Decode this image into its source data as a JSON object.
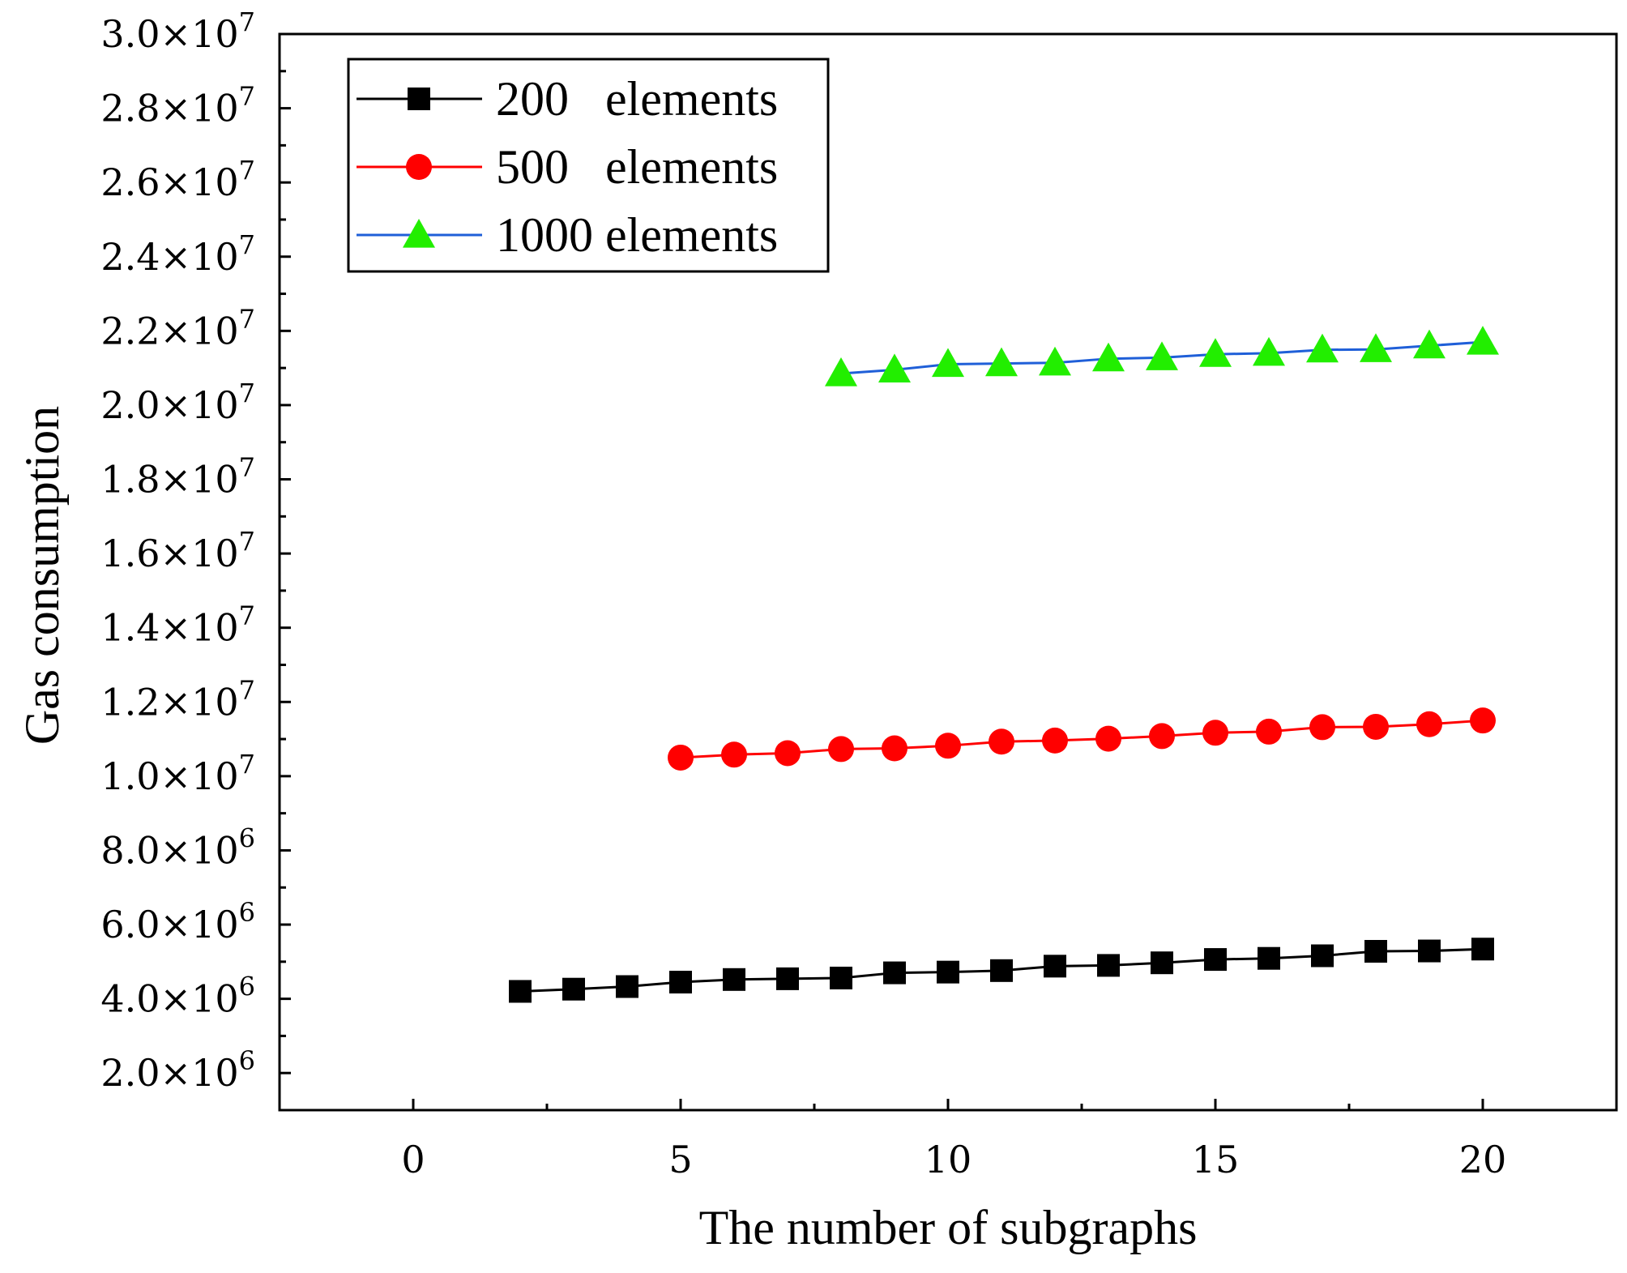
{
  "chart_data": {
    "type": "line",
    "title": "",
    "xlabel": "The number of subgraphs",
    "ylabel": "Gas consumption",
    "xlim": [
      -2.5,
      22.5
    ],
    "ylim": [
      1000000,
      30000000
    ],
    "x_ticks": [
      0,
      5,
      10,
      15,
      20
    ],
    "x_tick_labels": [
      "0",
      "5",
      "10",
      "15",
      "20"
    ],
    "y_ticks": [
      2000000,
      4000000,
      6000000,
      8000000,
      10000000,
      12000000,
      14000000,
      16000000,
      18000000,
      20000000,
      22000000,
      24000000,
      26000000,
      28000000,
      30000000
    ],
    "y_tick_labels": [
      {
        "mantissa": "2.0×10",
        "exp": "6"
      },
      {
        "mantissa": "4.0×10",
        "exp": "6"
      },
      {
        "mantissa": "6.0×10",
        "exp": "6"
      },
      {
        "mantissa": "8.0×10",
        "exp": "6"
      },
      {
        "mantissa": "1.0×10",
        "exp": "7"
      },
      {
        "mantissa": "1.2×10",
        "exp": "7"
      },
      {
        "mantissa": "1.4×10",
        "exp": "7"
      },
      {
        "mantissa": "1.6×10",
        "exp": "7"
      },
      {
        "mantissa": "1.8×10",
        "exp": "7"
      },
      {
        "mantissa": "2.0×10",
        "exp": "7"
      },
      {
        "mantissa": "2.2×10",
        "exp": "7"
      },
      {
        "mantissa": "2.4×10",
        "exp": "7"
      },
      {
        "mantissa": "2.6×10",
        "exp": "7"
      },
      {
        "mantissa": "2.8×10",
        "exp": "7"
      },
      {
        "mantissa": "3.0×10",
        "exp": "7"
      }
    ],
    "grid": false,
    "legend_position": "top-left",
    "series": [
      {
        "name": "200   elements",
        "marker": "square",
        "line_color": "#000000",
        "marker_color": "#000000",
        "x": [
          2,
          3,
          4,
          5,
          6,
          7,
          8,
          9,
          10,
          11,
          12,
          13,
          14,
          15,
          16,
          17,
          18,
          19,
          20
        ],
        "values": [
          4200000,
          4260000,
          4330000,
          4450000,
          4520000,
          4540000,
          4560000,
          4700000,
          4720000,
          4760000,
          4880000,
          4900000,
          4970000,
          5060000,
          5090000,
          5160000,
          5280000,
          5290000,
          5340000
        ]
      },
      {
        "name": "500   elements",
        "marker": "circle",
        "line_color": "#ff0000",
        "marker_color": "#ff0000",
        "x": [
          5,
          6,
          7,
          8,
          9,
          10,
          11,
          12,
          13,
          14,
          15,
          16,
          17,
          18,
          19,
          20
        ],
        "values": [
          10500000,
          10580000,
          10620000,
          10730000,
          10750000,
          10820000,
          10930000,
          10960000,
          11010000,
          11080000,
          11170000,
          11200000,
          11320000,
          11330000,
          11400000,
          11500000
        ]
      },
      {
        "name": "1000 elements",
        "marker": "triangle",
        "line_color": "#1f5fd8",
        "marker_color": "#22ee00",
        "x": [
          8,
          9,
          10,
          11,
          12,
          13,
          14,
          15,
          16,
          17,
          18,
          19,
          20
        ],
        "values": [
          20850000,
          20950000,
          21100000,
          21120000,
          21140000,
          21250000,
          21280000,
          21370000,
          21400000,
          21490000,
          21500000,
          21600000,
          21700000
        ]
      }
    ]
  }
}
